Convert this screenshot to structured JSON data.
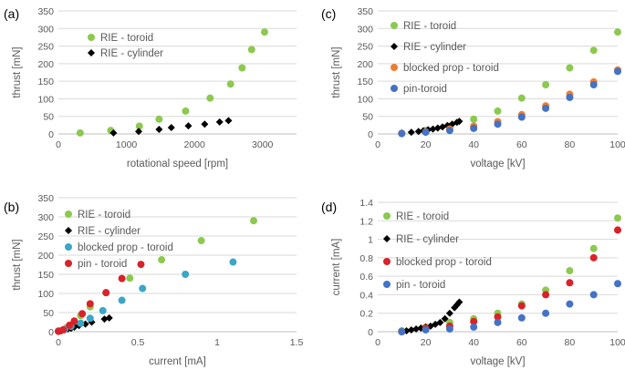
{
  "colors": {
    "rie_toroid": "#8cc94f",
    "rie_cylinder": "#000000",
    "blocked_prop_toroid": "#ed7d31",
    "blocked_prop_toroid_b": "#3ba6c8",
    "pin_toroid": "#4472c4",
    "pin_toroid_b": "#d9222a",
    "grid": "#d9d9d9",
    "text": "#595959"
  },
  "chart_data": [
    {
      "id": "a",
      "panel_label": "(a)",
      "type": "scatter",
      "xlabel": "rotational speed [rpm]",
      "ylabel": "thrust [mN]",
      "xlim": [
        0,
        3500
      ],
      "ylim": [
        0,
        350
      ],
      "xticks": [
        0,
        1000,
        2000,
        3000
      ],
      "yticks": [
        0,
        50,
        100,
        150,
        200,
        250,
        300,
        350
      ],
      "grid": true,
      "legend_position": "top-left",
      "series": [
        {
          "name": "RIE - toroid",
          "marker": "circle",
          "color": "#8cc94f",
          "points": [
            [
              320,
              3
            ],
            [
              770,
              10
            ],
            [
              1190,
              22
            ],
            [
              1480,
              42
            ],
            [
              1870,
              65
            ],
            [
              2230,
              102
            ],
            [
              2530,
              142
            ],
            [
              2700,
              188
            ],
            [
              2840,
              240
            ],
            [
              3030,
              290
            ]
          ]
        },
        {
          "name": "RIE - cylinder",
          "marker": "diamond",
          "color": "#000000",
          "points": [
            [
              810,
              3
            ],
            [
              1180,
              7
            ],
            [
              1480,
              13
            ],
            [
              1660,
              18
            ],
            [
              1910,
              23
            ],
            [
              2150,
              28
            ],
            [
              2370,
              34
            ],
            [
              2500,
              38
            ]
          ]
        }
      ]
    },
    {
      "id": "c",
      "panel_label": "(c)",
      "type": "scatter",
      "xlabel": "voltage [kV]",
      "ylabel": "thrust [mN]",
      "xlim": [
        0,
        100
      ],
      "ylim": [
        0,
        350
      ],
      "xticks": [
        0,
        20,
        40,
        60,
        80,
        100
      ],
      "yticks": [
        0,
        50,
        100,
        150,
        200,
        250,
        300,
        350
      ],
      "grid": true,
      "legend_position": "top-left",
      "series": [
        {
          "name": "RIE - toroid",
          "marker": "circle",
          "color": "#8cc94f",
          "points": [
            [
              10,
              2
            ],
            [
              20,
              10
            ],
            [
              30,
              22
            ],
            [
              40,
              42
            ],
            [
              50,
              65
            ],
            [
              60,
              102
            ],
            [
              70,
              140
            ],
            [
              80,
              188
            ],
            [
              90,
              238
            ],
            [
              100,
              290
            ]
          ]
        },
        {
          "name": "RIE - cylinder",
          "marker": "diamond",
          "color": "#000000",
          "points": [
            [
              10,
              3
            ],
            [
              14,
              5
            ],
            [
              17,
              7
            ],
            [
              19,
              9
            ],
            [
              21,
              12
            ],
            [
              23,
              14
            ],
            [
              25,
              17
            ],
            [
              27,
              20
            ],
            [
              29,
              24
            ],
            [
              31,
              28
            ],
            [
              33,
              33
            ],
            [
              34,
              36
            ]
          ]
        },
        {
          "name": "blocked prop - toroid",
          "marker": "circle",
          "color": "#ed7d31",
          "points": [
            [
              10,
              2
            ],
            [
              20,
              6
            ],
            [
              30,
              14
            ],
            [
              40,
              22
            ],
            [
              50,
              35
            ],
            [
              60,
              55
            ],
            [
              70,
              80
            ],
            [
              80,
              113
            ],
            [
              90,
              148
            ],
            [
              100,
              182
            ]
          ]
        },
        {
          "name": "pin-toroid",
          "marker": "circle",
          "color": "#4472c4",
          "points": [
            [
              10,
              1
            ],
            [
              20,
              5
            ],
            [
              30,
              10
            ],
            [
              40,
              16
            ],
            [
              50,
              28
            ],
            [
              60,
              48
            ],
            [
              70,
              73
            ],
            [
              80,
              104
            ],
            [
              90,
              140
            ],
            [
              100,
              178
            ]
          ]
        }
      ]
    },
    {
      "id": "b",
      "panel_label": "(b)",
      "type": "scatter",
      "xlabel": "current [mA]",
      "ylabel": "thrust [mN]",
      "xlim": [
        0,
        1.5
      ],
      "ylim": [
        0,
        350
      ],
      "xticks": [
        0,
        0.5,
        1,
        1.5
      ],
      "xtick_labels": [
        "0",
        "0.5",
        "1",
        "1.5"
      ],
      "yticks": [
        0,
        50,
        100,
        150,
        200,
        250,
        300,
        350
      ],
      "grid": true,
      "legend_position": "top-left",
      "series": [
        {
          "name": "RIE - toroid",
          "marker": "circle",
          "color": "#8cc94f",
          "points": [
            [
              0.01,
              2
            ],
            [
              0.05,
              10
            ],
            [
              0.1,
              22
            ],
            [
              0.14,
              42
            ],
            [
              0.2,
              65
            ],
            [
              0.3,
              102
            ],
            [
              0.45,
              140
            ],
            [
              0.65,
              188
            ],
            [
              0.9,
              238
            ],
            [
              1.23,
              290
            ]
          ]
        },
        {
          "name": "RIE - cylinder",
          "marker": "diamond",
          "color": "#000000",
          "points": [
            [
              0.02,
              3
            ],
            [
              0.04,
              5
            ],
            [
              0.06,
              7
            ],
            [
              0.08,
              9
            ],
            [
              0.1,
              12
            ],
            [
              0.13,
              16
            ],
            [
              0.17,
              20
            ],
            [
              0.21,
              25
            ],
            [
              0.29,
              33
            ],
            [
              0.32,
              36
            ]
          ]
        },
        {
          "name": "blocked prop - toroid",
          "marker": "circle",
          "color": "#3ba6c8",
          "points": [
            [
              0.0,
              2
            ],
            [
              0.04,
              6
            ],
            [
              0.08,
              14
            ],
            [
              0.14,
              22
            ],
            [
              0.2,
              35
            ],
            [
              0.28,
              55
            ],
            [
              0.4,
              82
            ],
            [
              0.53,
              113
            ],
            [
              0.8,
              150
            ],
            [
              1.1,
              182
            ]
          ]
        },
        {
          "name": "pin - toroid",
          "marker": "circle",
          "color": "#d9222a",
          "points": [
            [
              0.0,
              1
            ],
            [
              0.03,
              5
            ],
            [
              0.07,
              17
            ],
            [
              0.1,
              28
            ],
            [
              0.15,
              47
            ],
            [
              0.2,
              73
            ],
            [
              0.3,
              102
            ],
            [
              0.4,
              139
            ],
            [
              0.52,
              176
            ]
          ]
        }
      ]
    },
    {
      "id": "d",
      "panel_label": "(d)",
      "type": "scatter",
      "xlabel": "voltage [kV]",
      "ylabel": "current [mA]",
      "xlim": [
        0,
        100
      ],
      "ylim": [
        0,
        1.4
      ],
      "xticks": [
        0,
        20,
        40,
        60,
        80,
        100
      ],
      "yticks": [
        0,
        0.2,
        0.4,
        0.6,
        0.8,
        1,
        1.2,
        1.4
      ],
      "ytick_labels": [
        "0",
        "0.2",
        "0.4",
        "0.6",
        "0.8",
        "1",
        "1.2",
        "1.4"
      ],
      "grid": true,
      "legend_position": "top-left",
      "series": [
        {
          "name": "RIE - toroid",
          "marker": "circle",
          "color": "#8cc94f",
          "points": [
            [
              10,
              0.01
            ],
            [
              20,
              0.05
            ],
            [
              30,
              0.1
            ],
            [
              40,
              0.14
            ],
            [
              50,
              0.2
            ],
            [
              60,
              0.3
            ],
            [
              70,
              0.45
            ],
            [
              80,
              0.66
            ],
            [
              90,
              0.9
            ],
            [
              100,
              1.23
            ]
          ]
        },
        {
          "name": "RIE - cylinder",
          "marker": "diamond",
          "color": "#000000",
          "points": [
            [
              10,
              0.005
            ],
            [
              12,
              0.01
            ],
            [
              14,
              0.02
            ],
            [
              16,
              0.03
            ],
            [
              18,
              0.04
            ],
            [
              20,
              0.05
            ],
            [
              22,
              0.06
            ],
            [
              24,
              0.08
            ],
            [
              26,
              0.1
            ],
            [
              28,
              0.14
            ],
            [
              30,
              0.2
            ],
            [
              32,
              0.26
            ],
            [
              33,
              0.29
            ],
            [
              34,
              0.32
            ]
          ]
        },
        {
          "name": "blocked prop - toroid",
          "marker": "circle",
          "color": "#d9222a",
          "points": [
            [
              10,
              0.0
            ],
            [
              20,
              0.04
            ],
            [
              30,
              0.06
            ],
            [
              40,
              0.11
            ],
            [
              50,
              0.16
            ],
            [
              60,
              0.28
            ],
            [
              70,
              0.4
            ],
            [
              80,
              0.53
            ],
            [
              90,
              0.8
            ],
            [
              100,
              1.1
            ]
          ]
        },
        {
          "name": "pin - toroid",
          "marker": "circle",
          "color": "#4472c4",
          "points": [
            [
              10,
              0.0
            ],
            [
              20,
              0.02
            ],
            [
              30,
              0.03
            ],
            [
              40,
              0.05
            ],
            [
              50,
              0.1
            ],
            [
              60,
              0.15
            ],
            [
              70,
              0.2
            ],
            [
              80,
              0.3
            ],
            [
              90,
              0.4
            ],
            [
              100,
              0.52
            ]
          ]
        }
      ]
    }
  ]
}
